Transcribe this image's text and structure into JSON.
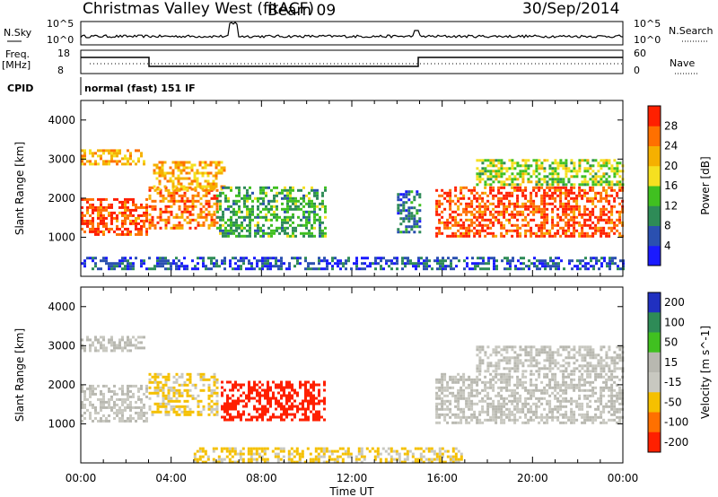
{
  "header": {
    "station": "Christmas Valley West (fitACF)",
    "beam": "Beam 09",
    "date": "30/Sep/2014",
    "cpid_label": "CPID",
    "cpid_value": "normal (fast) 151 IF"
  },
  "top_panels": {
    "nsky_label": "N.Sky",
    "nsky_ticks": [
      "10^5",
      "10^0"
    ],
    "nsearch_label": "N.Search",
    "freq_label": "Freq.",
    "freq_unit": "[MHz]",
    "freq_ticks": [
      "18",
      "8"
    ],
    "nave_label": "Nave",
    "nave_ticks": [
      "60",
      "0"
    ]
  },
  "chart_data": [
    {
      "type": "heatmap",
      "panel": "power",
      "ylabel": "Slant Range [km]",
      "ylim": [
        0,
        4500
      ],
      "yticks": [
        1000,
        2000,
        3000,
        4000
      ],
      "xlim": [
        0,
        24
      ],
      "colorbar": {
        "label": "Power [dB]",
        "ticks": [
          4,
          8,
          12,
          16,
          20,
          24,
          28
        ],
        "colors": [
          "#1a1aff",
          "#2a50b0",
          "#2e8b57",
          "#40c020",
          "#f5e020",
          "#f5b000",
          "#ff7000",
          "#ff2000"
        ]
      },
      "regions": [
        {
          "t0": 0.0,
          "t1": 2.9,
          "r0": 1100,
          "r1": 2000,
          "value": 28
        },
        {
          "t0": 0.0,
          "t1": 2.8,
          "r0": 2850,
          "r1": 3250,
          "value": 22
        },
        {
          "t0": 3.0,
          "t1": 6.0,
          "r0": 1200,
          "r1": 2300,
          "value": 26
        },
        {
          "t0": 3.2,
          "t1": 6.3,
          "r0": 2200,
          "r1": 2950,
          "value": 22
        },
        {
          "t0": 6.0,
          "t1": 10.8,
          "r0": 1000,
          "r1": 2300,
          "value": 12
        },
        {
          "t0": 14.0,
          "t1": 15.0,
          "r0": 1100,
          "r1": 2200,
          "value": 8
        },
        {
          "t0": 15.7,
          "t1": 24.0,
          "r0": 1000,
          "r1": 2300,
          "value": 28
        },
        {
          "t0": 17.5,
          "t1": 24.0,
          "r0": 2350,
          "r1": 3000,
          "value": 16
        },
        {
          "t0": 0.0,
          "t1": 24.0,
          "r0": 200,
          "r1": 500,
          "value": 6
        }
      ]
    },
    {
      "type": "heatmap",
      "panel": "velocity",
      "ylabel": "Slant Range [km]",
      "ylim": [
        0,
        4500
      ],
      "yticks": [
        1000,
        2000,
        3000,
        4000
      ],
      "xlim": [
        0,
        24
      ],
      "xticks": [
        "00:00",
        "04:00",
        "08:00",
        "12:00",
        "16:00",
        "20:00",
        "00:00"
      ],
      "xlabel": "Time UT",
      "colorbar": {
        "label": "Velocity [m s^-1]",
        "ticks": [
          "200",
          "100",
          "50",
          "15",
          "-15",
          "-50",
          "-100",
          "-200"
        ],
        "colors": [
          "#2030c0",
          "#2e8b57",
          "#40c020",
          "#b8b8b0",
          "#c8c8c0",
          "#f5c000",
          "#ff7000",
          "#ff2000"
        ]
      },
      "regions": [
        {
          "t0": 0.0,
          "t1": 2.9,
          "r0": 1100,
          "r1": 2000,
          "value": 0
        },
        {
          "t0": 0.0,
          "t1": 2.8,
          "r0": 2850,
          "r1": 3250,
          "value": 0
        },
        {
          "t0": 3.0,
          "t1": 6.0,
          "r0": 1200,
          "r1": 2300,
          "value": -40
        },
        {
          "t0": 6.2,
          "t1": 10.8,
          "r0": 1100,
          "r1": 2100,
          "value": -180
        },
        {
          "t0": 15.7,
          "t1": 24.0,
          "r0": 1000,
          "r1": 2300,
          "value": 0
        },
        {
          "t0": 17.5,
          "t1": 24.0,
          "r0": 2350,
          "r1": 3000,
          "value": 0
        },
        {
          "t0": 5.0,
          "t1": 17.0,
          "r0": 50,
          "r1": 400,
          "value": -40
        }
      ]
    }
  ]
}
